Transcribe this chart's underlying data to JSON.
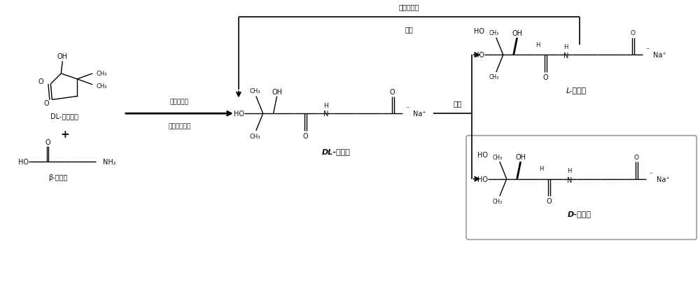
{
  "bg_color": "#ffffff",
  "fig_width": 10.0,
  "fig_height": 4.27,
  "dpi": 100,
  "text_color": "#111111",
  "top_label1": "重水化合物",
  "top_label2": "手性",
  "reaction_above": "酸水溶化剂",
  "reaction_below": "碳酸氢钓化剂",
  "dl_lactone_label": "DL-泛酸内酯",
  "beta_alanine_label": "β-丙氨酸",
  "dl_product_label": "DL-泛酸钓",
  "resolution_label": "拆分",
  "l_product_label": "L-泛酸钓",
  "d_product_label": "D-泛酸钓"
}
